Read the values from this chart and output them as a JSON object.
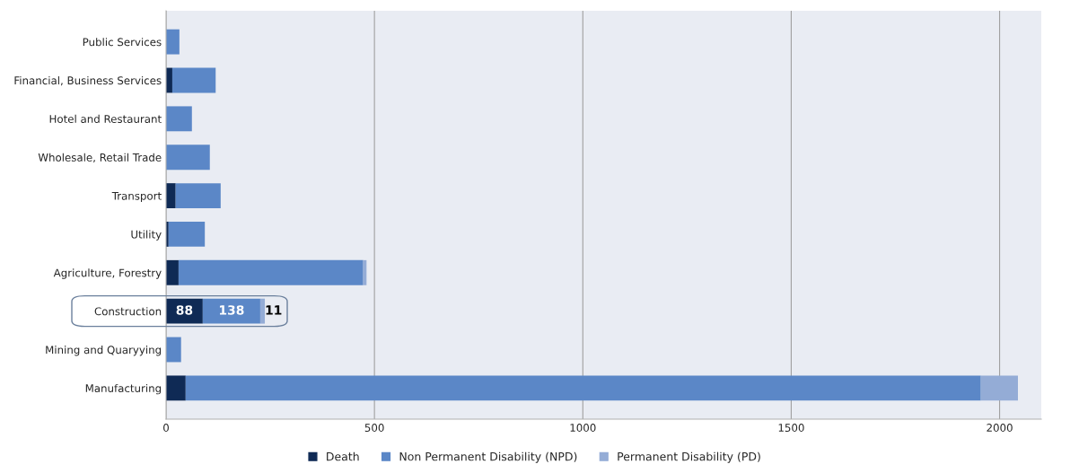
{
  "chart_data": {
    "type": "bar",
    "orientation": "horizontal",
    "stacked": true,
    "categories": [
      "Public Services",
      "Financial, Business Services",
      "Hotel and Restaurant",
      "Wholesale, Retail Trade",
      "Transport",
      "Utility",
      "Agriculture, Forestry",
      "Construction",
      "Mining and Quaryying",
      "Manufacturing"
    ],
    "series": [
      {
        "name": "Death",
        "color": "#0f2a55",
        "values": [
          0,
          15,
          0,
          null,
          23,
          6,
          30,
          88,
          null,
          47
        ],
        "value_labels": [
          null,
          null,
          null,
          null,
          null,
          null,
          null,
          "88",
          null,
          null
        ]
      },
      {
        "name": "Non Permanent Disability (NPD)",
        "color": "#5b87c7",
        "values": [
          32,
          104,
          62,
          105,
          108,
          87,
          443,
          138,
          36,
          1908
        ],
        "value_labels": [
          null,
          null,
          null,
          null,
          null,
          null,
          null,
          "138",
          null,
          null
        ]
      },
      {
        "name": "Permanent Disability (PD)",
        "color": "#94acd6",
        "values": [
          0,
          0,
          0,
          0,
          0,
          null,
          8,
          11,
          0,
          89
        ],
        "value_labels": [
          null,
          null,
          null,
          null,
          null,
          null,
          null,
          "11",
          null,
          null
        ]
      }
    ],
    "xlim": [
      0,
      2100
    ],
    "xticks": [
      0,
      500,
      1000,
      1500,
      2000
    ],
    "grid": "x",
    "legend": "bottom"
  }
}
